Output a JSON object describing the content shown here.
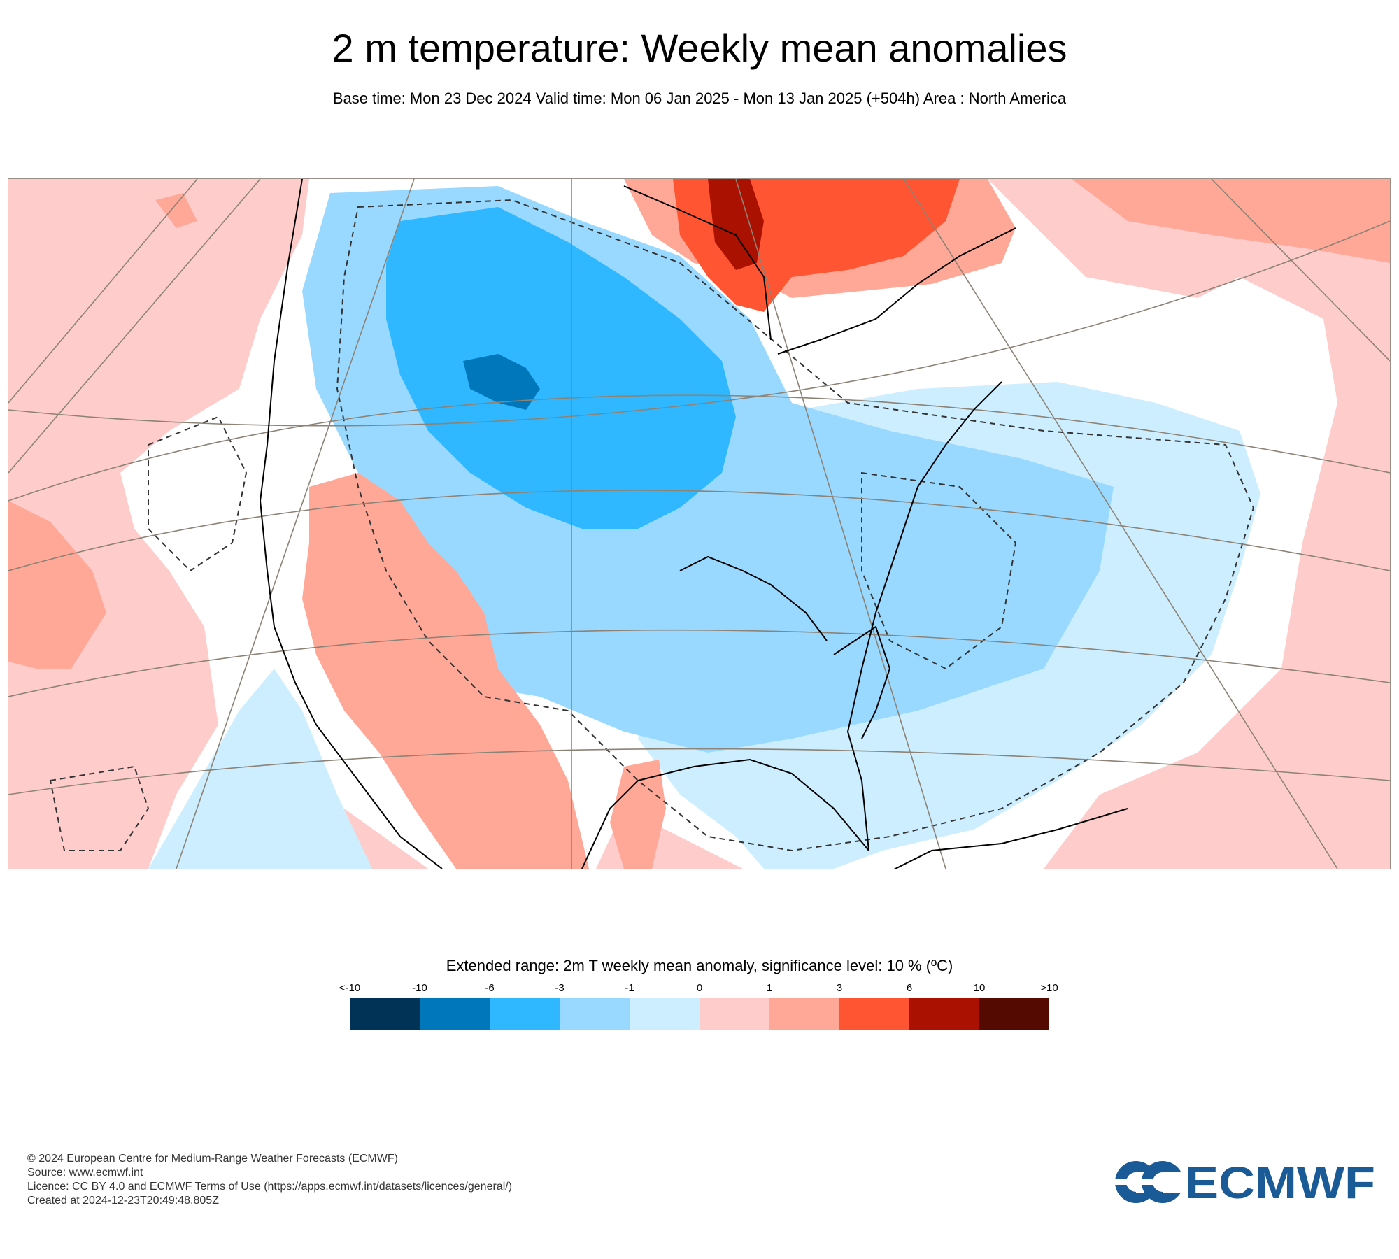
{
  "title": "2 m temperature: Weekly mean anomalies",
  "subtitle": "Base time: Mon 23 Dec 2024 Valid time: Mon 06 Jan 2025 - Mon 13 Jan 2025 (+504h) Area : North America",
  "legend": {
    "title": "Extended range: 2m T weekly mean anomaly, significance level: 10 % (ºC)",
    "ticks": [
      "<-10",
      "-10",
      "-6",
      "-3",
      "-1",
      "0",
      "1",
      "3",
      "6",
      "10",
      ">10"
    ],
    "colors": [
      "#003355",
      "#0077bb",
      "#2fb8ff",
      "#99d9ff",
      "#cceeff",
      "#ffcccc",
      "#ffa898",
      "#ff5533",
      "#aa1100",
      "#550a00"
    ]
  },
  "map": {
    "region": "North America",
    "land_outline_color": "#000000",
    "graticule_color": "#8c8276",
    "significance_contour": "dashed"
  },
  "footer": {
    "lines": [
      "© 2024 European Centre for Medium-Range Weather Forecasts (ECMWF)",
      "Source: www.ecmwf.int",
      "Licence: CC BY 4.0 and ECMWF Terms of Use (https://apps.ecmwf.int/datasets/licences/general/)",
      "Created at 2024-12-23T20:49:48.805Z"
    ]
  },
  "logo": {
    "text": "ECMWF",
    "color": "#1a5a96"
  }
}
